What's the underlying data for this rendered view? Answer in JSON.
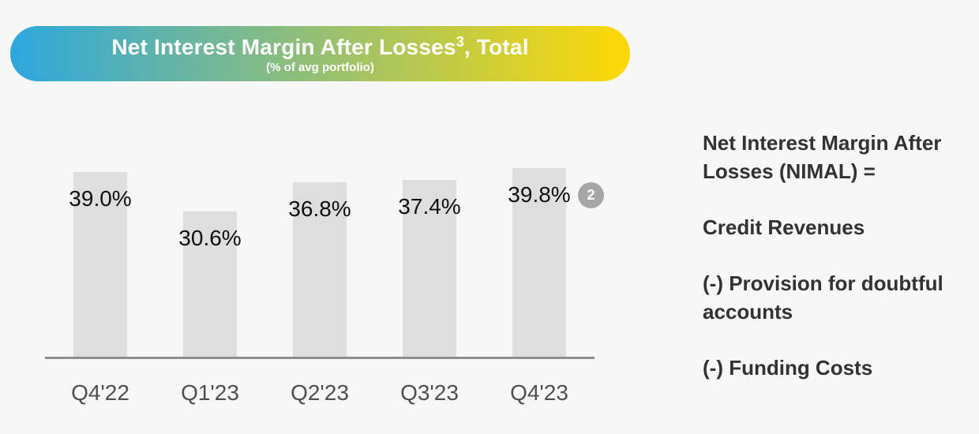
{
  "header": {
    "title_prefix": "Net Interest Margin After Losses",
    "title_superscript": "3",
    "title_suffix": ", Total",
    "subtitle": "(% of avg portfolio)",
    "gradient_left": "#2da7e0",
    "gradient_right": "#ffd905"
  },
  "chart_data": {
    "type": "bar",
    "title": "Net Interest Margin After Losses, Total",
    "ylabel": "% of avg portfolio",
    "categories": [
      "Q4'22",
      "Q1'23",
      "Q2'23",
      "Q3'23",
      "Q4'23"
    ],
    "values": [
      39.0,
      30.6,
      36.8,
      37.4,
      39.8
    ],
    "labels": [
      "39.0%",
      "30.6%",
      "36.8%",
      "37.4%",
      "39.8%"
    ],
    "ylim": [
      0,
      42
    ],
    "grid": false,
    "legend": false,
    "bar_color": "#dedede",
    "axis_color": "#8e8e8e",
    "annotation_badge": {
      "text": "2",
      "color": "#a6a6a6",
      "attached_to": "Q4'23"
    }
  },
  "right_panel": {
    "paragraphs": [
      "Net Interest Margin After Losses (NIMAL) =",
      "Credit Revenues",
      "(-) Provision for doubtful accounts",
      "(-) Funding Costs"
    ]
  }
}
